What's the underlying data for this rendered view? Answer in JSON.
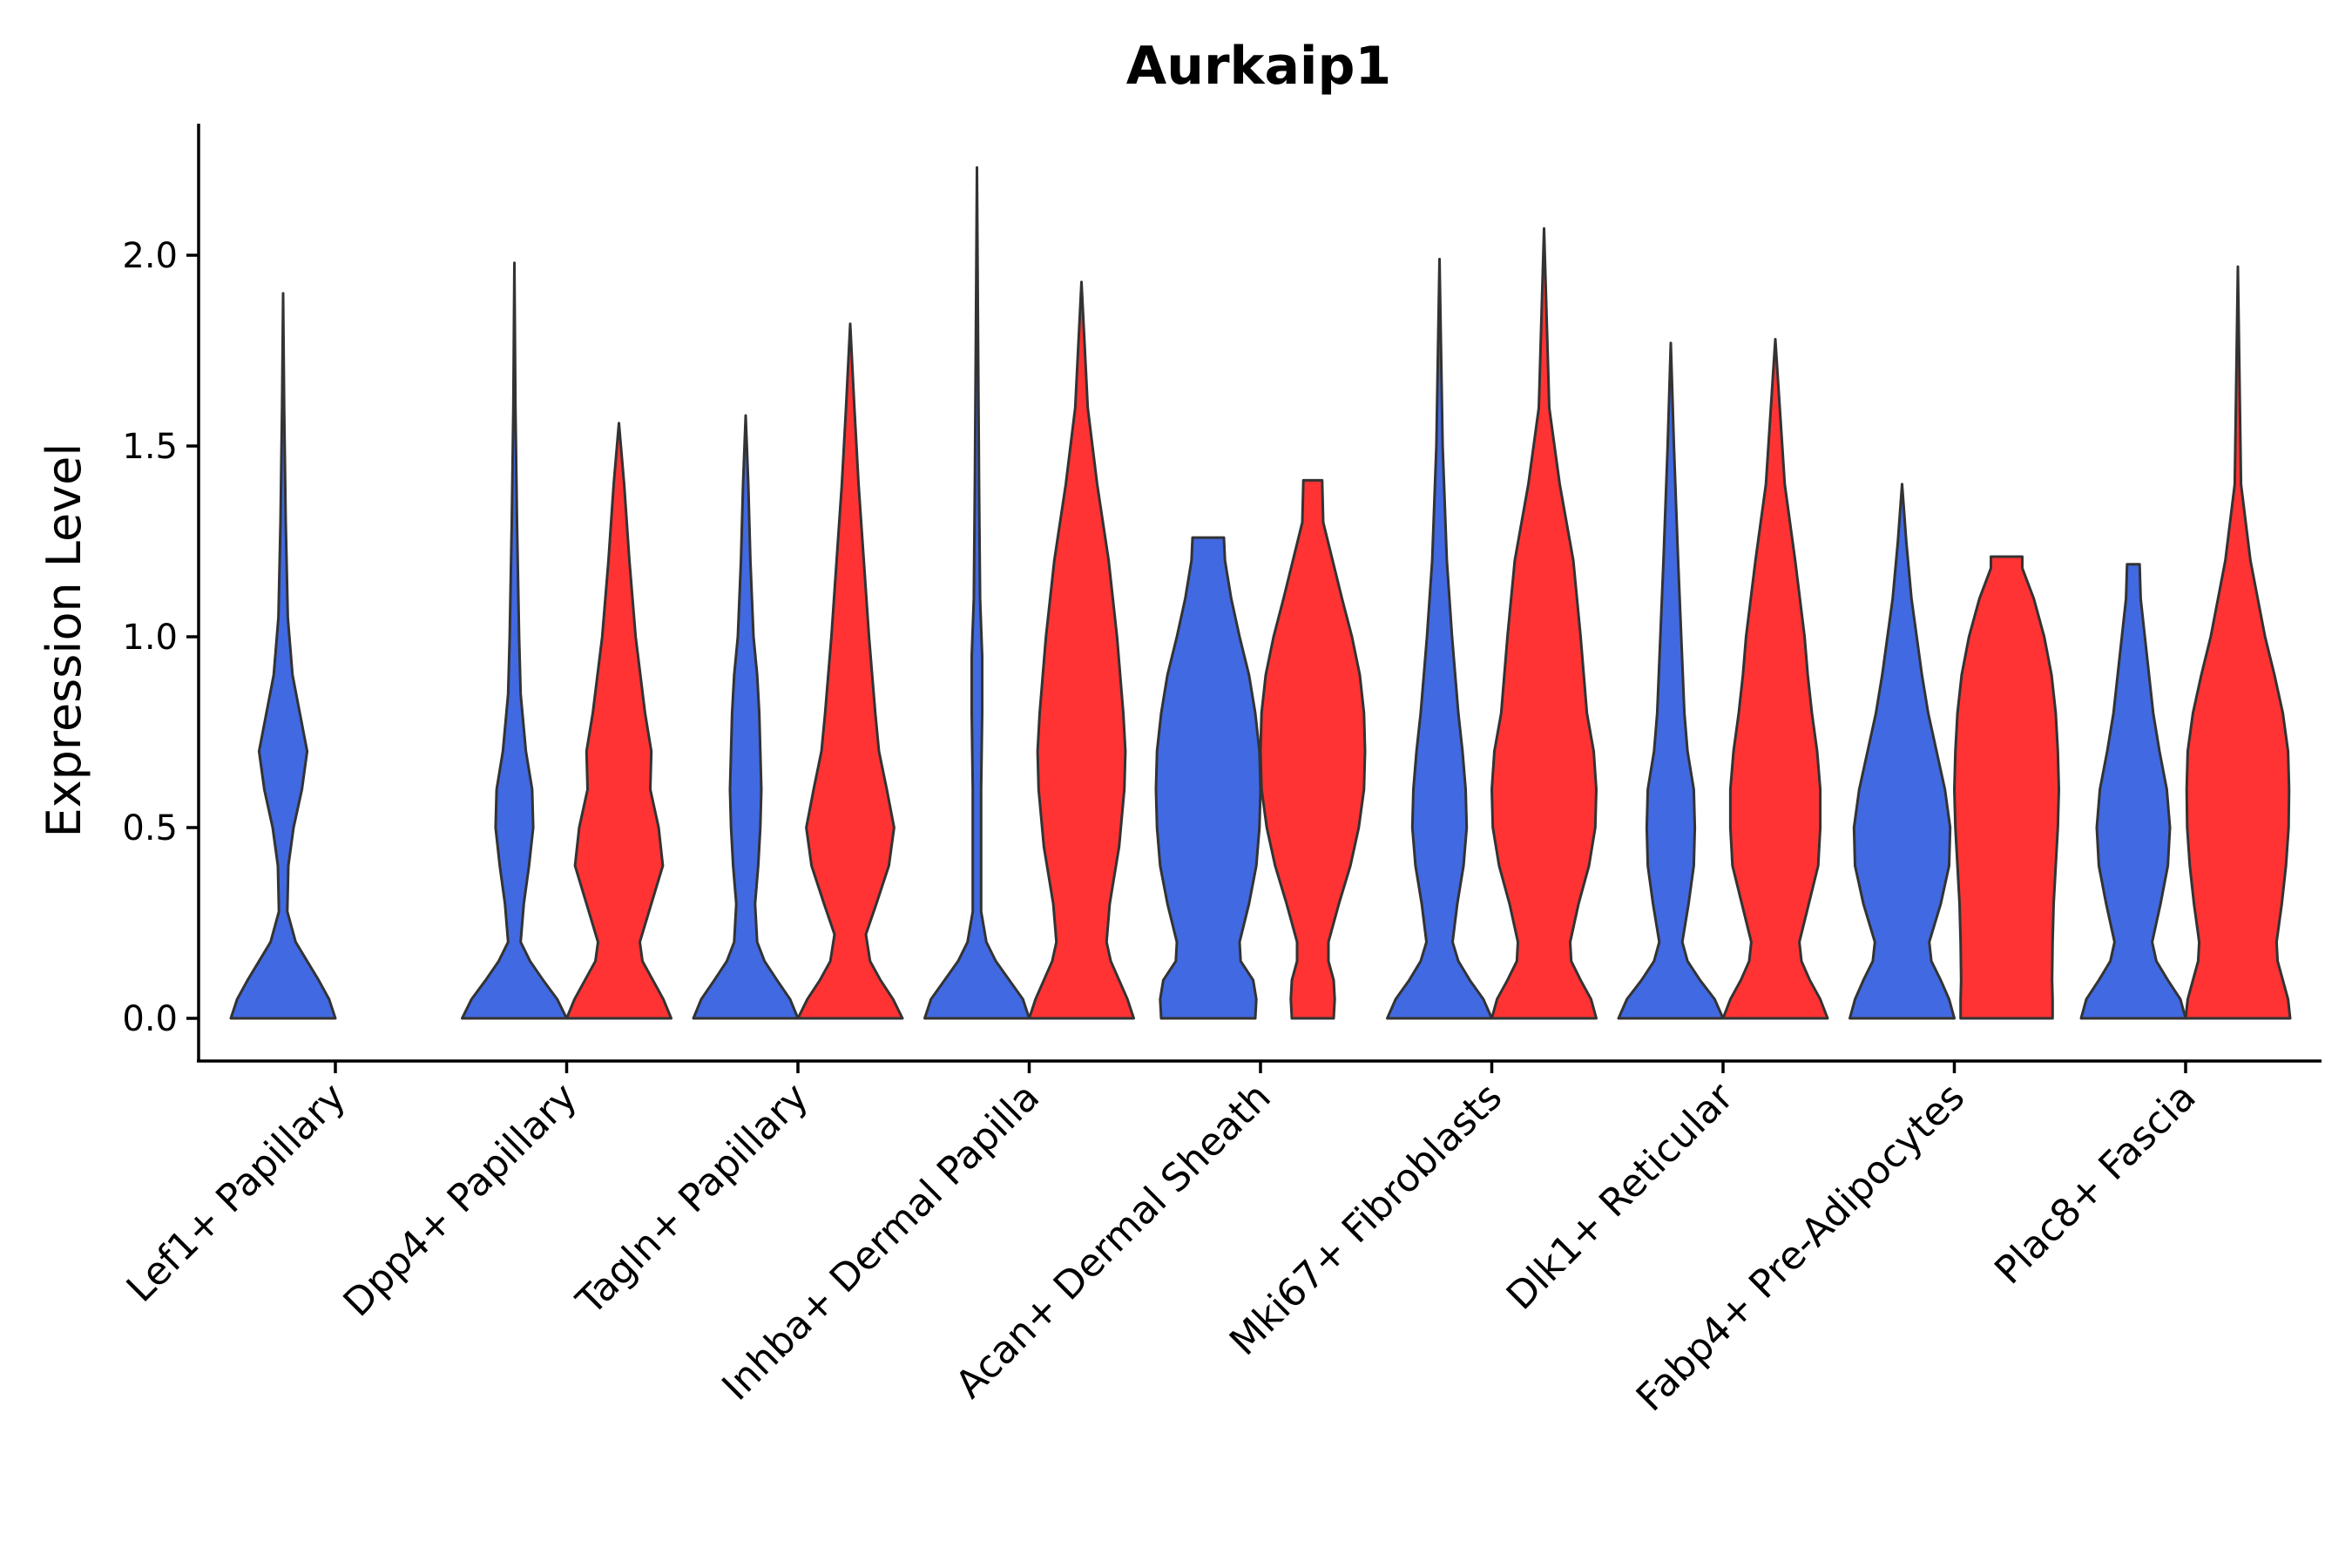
{
  "chart_data": {
    "type": "violin",
    "title": "Aurkaip1",
    "ylabel": "Expression Level",
    "xlabel": "",
    "ylim": [
      -0.11,
      2.35
    ],
    "yticks": [
      0.0,
      0.5,
      1.0,
      1.5,
      2.0
    ],
    "ytick_labels": [
      "0.0",
      "0.5",
      "1.0",
      "1.5",
      "2.0"
    ],
    "categories": [
      "Lef1+ Papillary",
      "Dpp4+ Papillary",
      "Tagln+ Papillary",
      "Inhba+ Dermal Papilla",
      "Acan+ Dermal Sheath",
      "Mki67+ Fibroblasts",
      "Dlk1+ Reticular",
      "Fabp4+ Pre-Adipocytes",
      "Plac8+ Fascia"
    ],
    "colors": {
      "blue": "#4169E1",
      "red": "#FF3333",
      "outline": "#333333"
    },
    "violins": [
      {
        "category": 0,
        "group": "blue",
        "max": 1.9,
        "profile": [
          [
            0,
            1.0
          ],
          [
            0.05,
            0.88
          ],
          [
            0.1,
            0.68
          ],
          [
            0.15,
            0.46
          ],
          [
            0.2,
            0.24
          ],
          [
            0.28,
            0.08
          ],
          [
            0.4,
            0.1
          ],
          [
            0.5,
            0.2
          ],
          [
            0.6,
            0.36
          ],
          [
            0.7,
            0.46
          ],
          [
            0.8,
            0.32
          ],
          [
            0.9,
            0.18
          ],
          [
            1.05,
            0.09
          ],
          [
            1.3,
            0.05
          ],
          [
            1.6,
            0.02
          ],
          [
            1.9,
            0.0
          ]
        ]
      },
      {
        "category": 1,
        "group": "blue",
        "max": 1.98,
        "profile": [
          [
            0,
            1.0
          ],
          [
            0.05,
            0.82
          ],
          [
            0.1,
            0.55
          ],
          [
            0.15,
            0.3
          ],
          [
            0.2,
            0.12
          ],
          [
            0.3,
            0.18
          ],
          [
            0.4,
            0.28
          ],
          [
            0.5,
            0.36
          ],
          [
            0.6,
            0.34
          ],
          [
            0.7,
            0.22
          ],
          [
            0.85,
            0.12
          ],
          [
            1.0,
            0.09
          ],
          [
            1.3,
            0.05
          ],
          [
            1.6,
            0.02
          ],
          [
            1.98,
            0.0
          ]
        ]
      },
      {
        "category": 1,
        "group": "red",
        "max": 1.56,
        "profile": [
          [
            0,
            1.0
          ],
          [
            0.05,
            0.85
          ],
          [
            0.1,
            0.65
          ],
          [
            0.15,
            0.45
          ],
          [
            0.2,
            0.4
          ],
          [
            0.3,
            0.62
          ],
          [
            0.4,
            0.84
          ],
          [
            0.5,
            0.76
          ],
          [
            0.6,
            0.6
          ],
          [
            0.7,
            0.62
          ],
          [
            0.8,
            0.5
          ],
          [
            1.0,
            0.32
          ],
          [
            1.2,
            0.2
          ],
          [
            1.4,
            0.1
          ],
          [
            1.56,
            0.0
          ]
        ]
      },
      {
        "category": 2,
        "group": "blue",
        "max": 1.58,
        "profile": [
          [
            0,
            1.0
          ],
          [
            0.05,
            0.85
          ],
          [
            0.1,
            0.6
          ],
          [
            0.15,
            0.36
          ],
          [
            0.2,
            0.22
          ],
          [
            0.3,
            0.18
          ],
          [
            0.4,
            0.24
          ],
          [
            0.5,
            0.28
          ],
          [
            0.6,
            0.3
          ],
          [
            0.7,
            0.28
          ],
          [
            0.8,
            0.26
          ],
          [
            0.9,
            0.22
          ],
          [
            1.0,
            0.15
          ],
          [
            1.2,
            0.09
          ],
          [
            1.4,
            0.05
          ],
          [
            1.58,
            0.0
          ]
        ]
      },
      {
        "category": 2,
        "group": "red",
        "max": 1.82,
        "profile": [
          [
            0,
            1.0
          ],
          [
            0.05,
            0.82
          ],
          [
            0.1,
            0.58
          ],
          [
            0.15,
            0.38
          ],
          [
            0.22,
            0.3
          ],
          [
            0.3,
            0.5
          ],
          [
            0.4,
            0.74
          ],
          [
            0.5,
            0.84
          ],
          [
            0.6,
            0.7
          ],
          [
            0.7,
            0.55
          ],
          [
            0.8,
            0.48
          ],
          [
            1.0,
            0.36
          ],
          [
            1.2,
            0.26
          ],
          [
            1.4,
            0.16
          ],
          [
            1.6,
            0.08
          ],
          [
            1.82,
            0.0
          ]
        ]
      },
      {
        "category": 3,
        "group": "blue",
        "max": 2.23,
        "profile": [
          [
            0,
            1.0
          ],
          [
            0.05,
            0.88
          ],
          [
            0.1,
            0.62
          ],
          [
            0.15,
            0.36
          ],
          [
            0.2,
            0.18
          ],
          [
            0.28,
            0.08
          ],
          [
            0.4,
            0.08
          ],
          [
            0.6,
            0.08
          ],
          [
            0.8,
            0.1
          ],
          [
            0.95,
            0.1
          ],
          [
            1.1,
            0.06
          ],
          [
            1.4,
            0.04
          ],
          [
            1.8,
            0.02
          ],
          [
            2.23,
            0.0
          ]
        ]
      },
      {
        "category": 3,
        "group": "red",
        "max": 1.93,
        "profile": [
          [
            0,
            1.0
          ],
          [
            0.05,
            0.88
          ],
          [
            0.1,
            0.72
          ],
          [
            0.15,
            0.56
          ],
          [
            0.2,
            0.48
          ],
          [
            0.3,
            0.54
          ],
          [
            0.45,
            0.72
          ],
          [
            0.6,
            0.82
          ],
          [
            0.7,
            0.84
          ],
          [
            0.8,
            0.8
          ],
          [
            0.9,
            0.74
          ],
          [
            1.0,
            0.68
          ],
          [
            1.2,
            0.52
          ],
          [
            1.4,
            0.3
          ],
          [
            1.6,
            0.12
          ],
          [
            1.93,
            0.0
          ]
        ]
      },
      {
        "category": 4,
        "group": "blue",
        "max": 1.26,
        "profile": [
          [
            0,
            0.9
          ],
          [
            0.05,
            0.92
          ],
          [
            0.1,
            0.86
          ],
          [
            0.15,
            0.62
          ],
          [
            0.2,
            0.6
          ],
          [
            0.3,
            0.78
          ],
          [
            0.4,
            0.92
          ],
          [
            0.5,
            0.98
          ],
          [
            0.6,
            1.0
          ],
          [
            0.7,
            0.98
          ],
          [
            0.8,
            0.9
          ],
          [
            0.9,
            0.78
          ],
          [
            1.0,
            0.6
          ],
          [
            1.1,
            0.44
          ],
          [
            1.2,
            0.32
          ],
          [
            1.26,
            0.3
          ]
        ]
      },
      {
        "category": 4,
        "group": "red",
        "max": 1.41,
        "profile": [
          [
            0,
            0.4
          ],
          [
            0.05,
            0.42
          ],
          [
            0.1,
            0.4
          ],
          [
            0.15,
            0.3
          ],
          [
            0.2,
            0.3
          ],
          [
            0.3,
            0.5
          ],
          [
            0.4,
            0.72
          ],
          [
            0.5,
            0.88
          ],
          [
            0.6,
            0.98
          ],
          [
            0.7,
            1.0
          ],
          [
            0.8,
            0.98
          ],
          [
            0.9,
            0.9
          ],
          [
            1.0,
            0.75
          ],
          [
            1.1,
            0.56
          ],
          [
            1.2,
            0.38
          ],
          [
            1.3,
            0.2
          ],
          [
            1.41,
            0.18
          ]
        ]
      },
      {
        "category": 5,
        "group": "blue",
        "max": 1.99,
        "profile": [
          [
            0,
            1.0
          ],
          [
            0.05,
            0.84
          ],
          [
            0.1,
            0.58
          ],
          [
            0.15,
            0.36
          ],
          [
            0.2,
            0.25
          ],
          [
            0.3,
            0.34
          ],
          [
            0.4,
            0.46
          ],
          [
            0.5,
            0.52
          ],
          [
            0.6,
            0.5
          ],
          [
            0.7,
            0.44
          ],
          [
            0.8,
            0.36
          ],
          [
            0.9,
            0.3
          ],
          [
            1.0,
            0.24
          ],
          [
            1.2,
            0.14
          ],
          [
            1.5,
            0.06
          ],
          [
            1.99,
            0.0
          ]
        ]
      },
      {
        "category": 5,
        "group": "red",
        "max": 2.07,
        "profile": [
          [
            0,
            1.0
          ],
          [
            0.05,
            0.9
          ],
          [
            0.1,
            0.7
          ],
          [
            0.15,
            0.52
          ],
          [
            0.2,
            0.5
          ],
          [
            0.3,
            0.66
          ],
          [
            0.4,
            0.86
          ],
          [
            0.5,
            0.98
          ],
          [
            0.6,
            1.0
          ],
          [
            0.7,
            0.95
          ],
          [
            0.8,
            0.82
          ],
          [
            1.0,
            0.7
          ],
          [
            1.2,
            0.56
          ],
          [
            1.4,
            0.3
          ],
          [
            1.6,
            0.1
          ],
          [
            2.07,
            0.0
          ]
        ]
      },
      {
        "category": 6,
        "group": "blue",
        "max": 1.77,
        "profile": [
          [
            0,
            1.0
          ],
          [
            0.05,
            0.84
          ],
          [
            0.1,
            0.56
          ],
          [
            0.15,
            0.32
          ],
          [
            0.2,
            0.22
          ],
          [
            0.3,
            0.34
          ],
          [
            0.4,
            0.44
          ],
          [
            0.5,
            0.46
          ],
          [
            0.6,
            0.44
          ],
          [
            0.7,
            0.32
          ],
          [
            0.8,
            0.26
          ],
          [
            1.0,
            0.2
          ],
          [
            1.2,
            0.14
          ],
          [
            1.5,
            0.06
          ],
          [
            1.77,
            0.0
          ]
        ]
      },
      {
        "category": 6,
        "group": "red",
        "max": 1.78,
        "profile": [
          [
            0,
            1.0
          ],
          [
            0.05,
            0.86
          ],
          [
            0.1,
            0.66
          ],
          [
            0.15,
            0.5
          ],
          [
            0.2,
            0.46
          ],
          [
            0.3,
            0.64
          ],
          [
            0.4,
            0.82
          ],
          [
            0.5,
            0.86
          ],
          [
            0.6,
            0.86
          ],
          [
            0.7,
            0.8
          ],
          [
            0.8,
            0.7
          ],
          [
            0.9,
            0.62
          ],
          [
            1.0,
            0.56
          ],
          [
            1.2,
            0.38
          ],
          [
            1.4,
            0.18
          ],
          [
            1.78,
            0.0
          ]
        ]
      },
      {
        "category": 7,
        "group": "blue",
        "max": 1.4,
        "profile": [
          [
            0,
            1.0
          ],
          [
            0.05,
            0.9
          ],
          [
            0.1,
            0.74
          ],
          [
            0.15,
            0.56
          ],
          [
            0.2,
            0.52
          ],
          [
            0.3,
            0.74
          ],
          [
            0.4,
            0.9
          ],
          [
            0.5,
            0.92
          ],
          [
            0.6,
            0.82
          ],
          [
            0.7,
            0.66
          ],
          [
            0.8,
            0.5
          ],
          [
            0.9,
            0.38
          ],
          [
            1.0,
            0.28
          ],
          [
            1.1,
            0.18
          ],
          [
            1.25,
            0.08
          ],
          [
            1.4,
            0.0
          ]
        ]
      },
      {
        "category": 7,
        "group": "red",
        "max": 1.21,
        "profile": [
          [
            0,
            0.88
          ],
          [
            0.05,
            0.88
          ],
          [
            0.1,
            0.87
          ],
          [
            0.2,
            0.88
          ],
          [
            0.3,
            0.9
          ],
          [
            0.4,
            0.94
          ],
          [
            0.5,
            0.98
          ],
          [
            0.6,
            1.0
          ],
          [
            0.7,
            0.98
          ],
          [
            0.8,
            0.94
          ],
          [
            0.9,
            0.86
          ],
          [
            1.0,
            0.72
          ],
          [
            1.1,
            0.52
          ],
          [
            1.18,
            0.3
          ],
          [
            1.21,
            0.3
          ]
        ]
      },
      {
        "category": 8,
        "group": "blue",
        "max": 1.19,
        "profile": [
          [
            0,
            1.0
          ],
          [
            0.05,
            0.9
          ],
          [
            0.1,
            0.66
          ],
          [
            0.15,
            0.44
          ],
          [
            0.2,
            0.36
          ],
          [
            0.3,
            0.52
          ],
          [
            0.4,
            0.66
          ],
          [
            0.5,
            0.7
          ],
          [
            0.6,
            0.64
          ],
          [
            0.7,
            0.5
          ],
          [
            0.8,
            0.38
          ],
          [
            0.9,
            0.3
          ],
          [
            1.0,
            0.22
          ],
          [
            1.1,
            0.14
          ],
          [
            1.19,
            0.12
          ]
        ]
      },
      {
        "category": 8,
        "group": "red",
        "max": 1.97,
        "profile": [
          [
            0,
            1.0
          ],
          [
            0.05,
            0.96
          ],
          [
            0.1,
            0.86
          ],
          [
            0.15,
            0.76
          ],
          [
            0.2,
            0.74
          ],
          [
            0.3,
            0.84
          ],
          [
            0.4,
            0.92
          ],
          [
            0.5,
            0.97
          ],
          [
            0.6,
            0.98
          ],
          [
            0.7,
            0.96
          ],
          [
            0.8,
            0.86
          ],
          [
            0.9,
            0.7
          ],
          [
            1.0,
            0.52
          ],
          [
            1.2,
            0.24
          ],
          [
            1.4,
            0.06
          ],
          [
            1.97,
            0.0
          ]
        ]
      }
    ]
  }
}
